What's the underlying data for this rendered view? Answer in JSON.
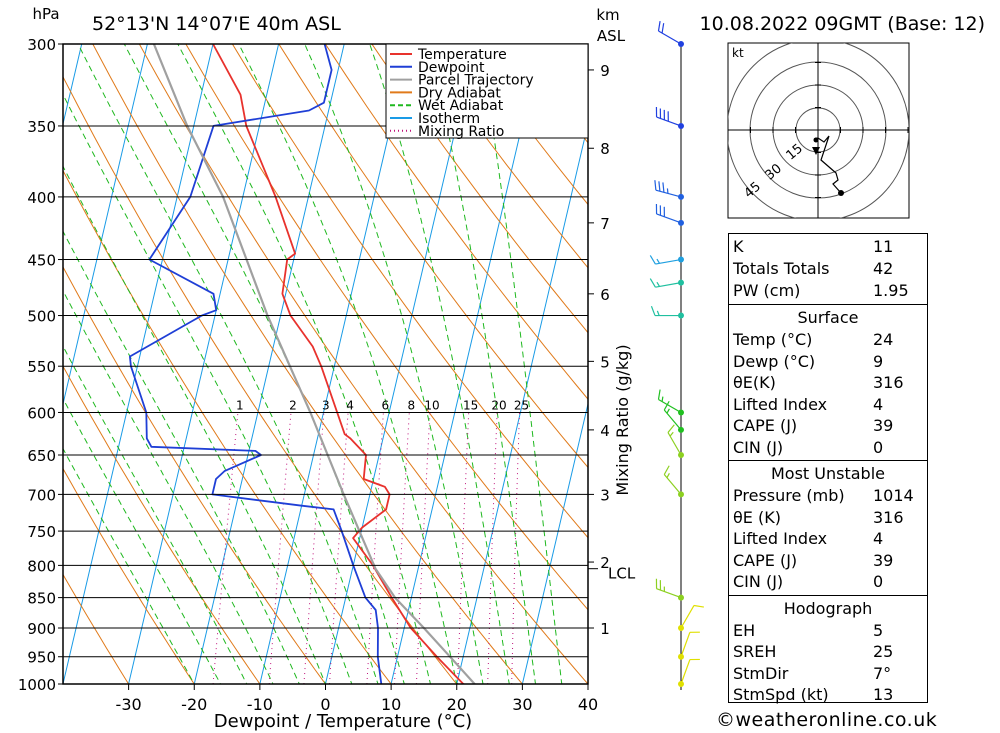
{
  "header": {
    "location": "52°13'N 14°07'E 40m ASL",
    "datetime": "10.08.2022 09GMT (Base: 12)",
    "pressure_unit": "hPa",
    "km_label": "km",
    "asl_label": "ASL"
  },
  "credit": "©weatheronline.co.uk",
  "hodograph": {
    "unit": "kt",
    "ring_labels": [
      "15",
      "30",
      "45"
    ]
  },
  "legend": [
    {
      "label": "Temperature",
      "color": "#e8322d",
      "dash": "solid"
    },
    {
      "label": "Dewpoint",
      "color": "#1f3fd6",
      "dash": "solid"
    },
    {
      "label": "Parcel Trajectory",
      "color": "#a0a0a0",
      "dash": "solid"
    },
    {
      "label": "Dry Adiabat",
      "color": "#e07a1a",
      "dash": "solid"
    },
    {
      "label": "Wet Adiabat",
      "color": "#1fb81f",
      "dash": "dashed"
    },
    {
      "label": "Isotherm",
      "color": "#1a9be6",
      "dash": "solid"
    },
    {
      "label": "Mixing Ratio",
      "color": "#c0147c",
      "dash": "dotted"
    }
  ],
  "indices": {
    "top": [
      {
        "k": "K",
        "v": "11"
      },
      {
        "k": "Totals Totals",
        "v": "42"
      },
      {
        "k": "PW (cm)",
        "v": "1.95"
      }
    ],
    "surface_title": "Surface",
    "surface": [
      {
        "k": "Temp (°C)",
        "v": "24"
      },
      {
        "k": "Dewp (°C)",
        "v": "9"
      },
      {
        "k": "θE(K)",
        "v": "316"
      },
      {
        "k": "Lifted Index",
        "v": "4"
      },
      {
        "k": "CAPE (J)",
        "v": "39"
      },
      {
        "k": "CIN (J)",
        "v": "0"
      }
    ],
    "mu_title": "Most Unstable",
    "mu": [
      {
        "k": "Pressure (mb)",
        "v": "1014"
      },
      {
        "k": "θE (K)",
        "v": "316"
      },
      {
        "k": "Lifted Index",
        "v": "4"
      },
      {
        "k": "CAPE (J)",
        "v": "39"
      },
      {
        "k": "CIN (J)",
        "v": "0"
      }
    ],
    "hodo_title": "Hodograph",
    "hodo": [
      {
        "k": "EH",
        "v": "5"
      },
      {
        "k": "SREH",
        "v": "25"
      },
      {
        "k": "StmDir",
        "v": "7°"
      },
      {
        "k": "StmSpd (kt)",
        "v": "13"
      }
    ]
  },
  "chart_data": {
    "type": "line",
    "subtype": "skew-T log-P sounding",
    "xlabel": "Dewpoint / Temperature (°C)",
    "ylabel": "hPa",
    "right_ylabel": "Mixing Ratio (g/kg)",
    "xlim": [
      -40,
      40
    ],
    "ylim": [
      1000,
      300
    ],
    "x_ticks": [
      -30,
      -20,
      -10,
      0,
      10,
      20,
      30,
      40
    ],
    "pressure_levels": [
      300,
      350,
      400,
      450,
      500,
      550,
      600,
      650,
      700,
      750,
      800,
      850,
      900,
      950,
      1000
    ],
    "km_ticks": [
      "1",
      "2",
      "3",
      "4",
      "5",
      "6",
      "7",
      "8",
      "9"
    ],
    "km_pressures": [
      900,
      795,
      700,
      620,
      545,
      480,
      420,
      365,
      315
    ],
    "lcl_label": "LCL",
    "lcl_pressure": 805,
    "mixing_ratio_labels": [
      "1",
      "2",
      "3",
      "4",
      "6",
      "8",
      "10",
      "15",
      "20",
      "25"
    ],
    "mixing_ratio_values": [
      1,
      2,
      3,
      4,
      6,
      8,
      10,
      15,
      20,
      25
    ],
    "series": [
      {
        "name": "Temperature",
        "color": "#e8322d",
        "points": [
          [
            1014,
            24
          ],
          [
            1000,
            21
          ],
          [
            950,
            16
          ],
          [
            900,
            11
          ],
          [
            850,
            7
          ],
          [
            800,
            3
          ],
          [
            760,
            -1
          ],
          [
            745,
            0
          ],
          [
            720,
            3
          ],
          [
            700,
            3
          ],
          [
            690,
            2
          ],
          [
            680,
            -1.5
          ],
          [
            650,
            -2
          ],
          [
            630,
            -5
          ],
          [
            625,
            -6
          ],
          [
            550,
            -12
          ],
          [
            530,
            -14
          ],
          [
            500,
            -18.5
          ],
          [
            480,
            -20.5
          ],
          [
            450,
            -21
          ],
          [
            445,
            -20
          ],
          [
            400,
            -25
          ],
          [
            350,
            -32
          ],
          [
            330,
            -34
          ],
          [
            300,
            -40
          ]
        ]
      },
      {
        "name": "Dewpoint",
        "color": "#1f3fd6",
        "points": [
          [
            1014,
            9
          ],
          [
            1000,
            8.5
          ],
          [
            950,
            7
          ],
          [
            900,
            6
          ],
          [
            870,
            5
          ],
          [
            850,
            3
          ],
          [
            800,
            0
          ],
          [
            750,
            -3
          ],
          [
            720,
            -5
          ],
          [
            715,
            -10
          ],
          [
            700,
            -24
          ],
          [
            680,
            -24
          ],
          [
            670,
            -23
          ],
          [
            650,
            -18
          ],
          [
            645,
            -19
          ],
          [
            640,
            -35
          ],
          [
            630,
            -36
          ],
          [
            600,
            -37
          ],
          [
            550,
            -41
          ],
          [
            540,
            -41.5
          ],
          [
            500,
            -32
          ],
          [
            495,
            -30
          ],
          [
            480,
            -31
          ],
          [
            450,
            -42
          ],
          [
            400,
            -38
          ],
          [
            350,
            -37
          ],
          [
            340,
            -23
          ],
          [
            335,
            -21
          ],
          [
            315,
            -21
          ],
          [
            300,
            -23
          ]
        ]
      },
      {
        "name": "Parcel Trajectory",
        "color": "#a0a0a0",
        "points": [
          [
            1014,
            24
          ],
          [
            950,
            18
          ],
          [
            900,
            13
          ],
          [
            850,
            7.5
          ],
          [
            805,
            3.5
          ],
          [
            700,
            -4
          ],
          [
            600,
            -12
          ],
          [
            500,
            -22
          ],
          [
            400,
            -33
          ],
          [
            350,
            -41
          ],
          [
            300,
            -49
          ]
        ]
      }
    ],
    "wind_levels": [
      {
        "p": 1000,
        "dir": 20,
        "spd": 10,
        "color": "#e0e000"
      },
      {
        "p": 950,
        "dir": 20,
        "spd": 10,
        "color": "#e0e000"
      },
      {
        "p": 900,
        "dir": 30,
        "spd": 10,
        "color": "#e0e000"
      },
      {
        "p": 850,
        "dir": 290,
        "spd": 25,
        "color": "#8cd020"
      },
      {
        "p": 700,
        "dir": 320,
        "spd": 15,
        "color": "#8cd020"
      },
      {
        "p": 650,
        "dir": 330,
        "spd": 15,
        "color": "#8cd020"
      },
      {
        "p": 620,
        "dir": 320,
        "spd": 15,
        "color": "#20c020"
      },
      {
        "p": 600,
        "dir": 300,
        "spd": 15,
        "color": "#20c020"
      },
      {
        "p": 500,
        "dir": 270,
        "spd": 15,
        "color": "#20c0a0"
      },
      {
        "p": 470,
        "dir": 260,
        "spd": 15,
        "color": "#20c0a0"
      },
      {
        "p": 450,
        "dir": 260,
        "spd": 15,
        "color": "#20a0e0"
      },
      {
        "p": 420,
        "dir": 290,
        "spd": 30,
        "color": "#2060e0"
      },
      {
        "p": 400,
        "dir": 285,
        "spd": 35,
        "color": "#2060e0"
      },
      {
        "p": 350,
        "dir": 290,
        "spd": 40,
        "color": "#2040e0"
      },
      {
        "p": 300,
        "dir": 300,
        "spd": 20,
        "color": "#2040e0"
      }
    ]
  }
}
